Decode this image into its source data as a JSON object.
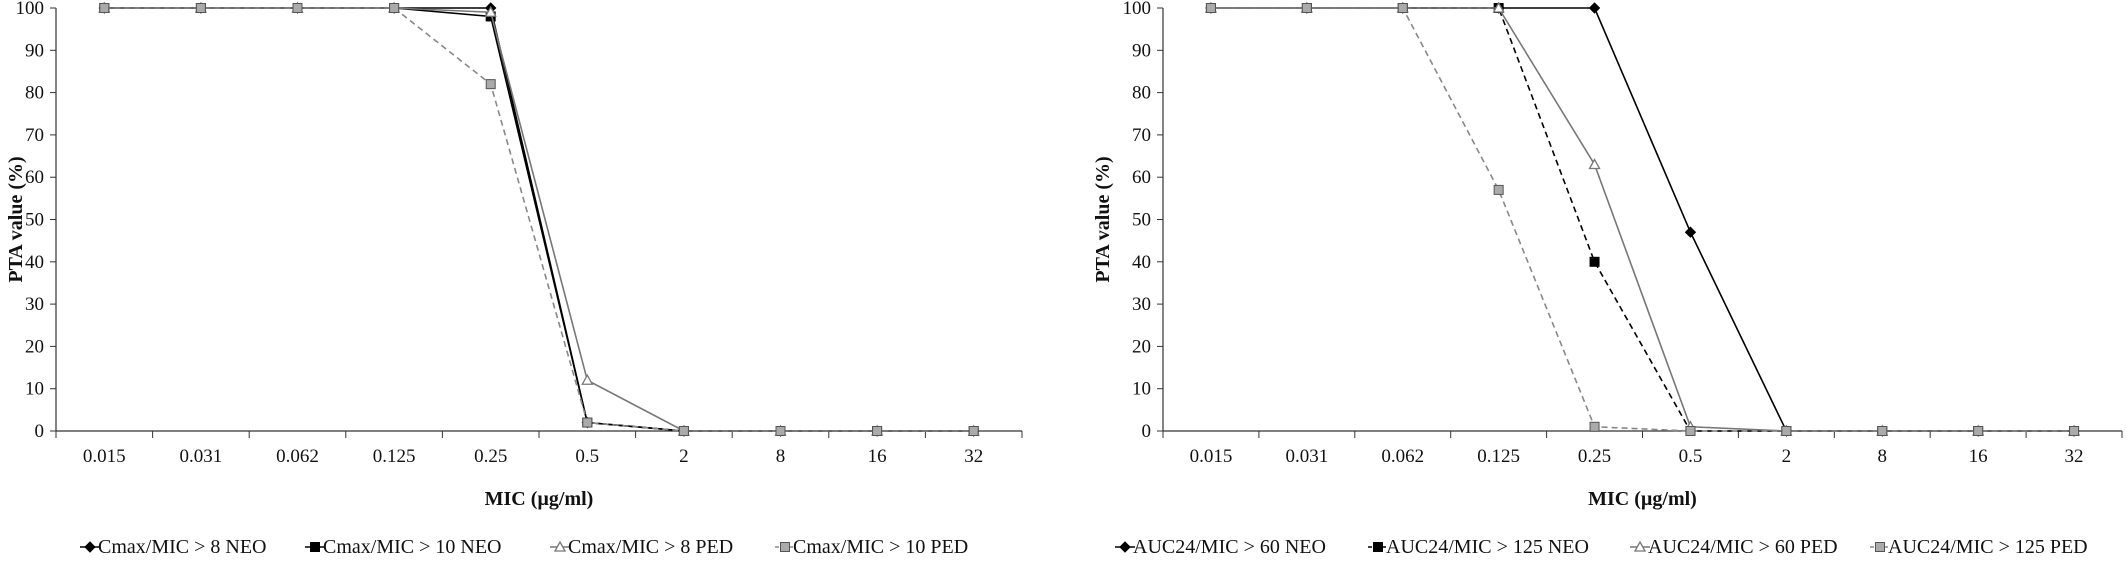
{
  "chart_data": [
    {
      "type": "line",
      "title": "",
      "xlabel": "MIC (µg/ml)",
      "ylabel": "PTA value (%)",
      "categories": [
        "0.015",
        "0.031",
        "0.062",
        "0.125",
        "0.25",
        "0.5",
        "2",
        "8",
        "16",
        "32"
      ],
      "ylim": [
        0,
        100
      ],
      "yticks": [
        "0",
        "10",
        "20",
        "30",
        "40",
        "50",
        "60",
        "70",
        "80",
        "90",
        "100"
      ],
      "grid": false,
      "legend_position": "bottom",
      "series": [
        {
          "name": "Cmax/MIC > 8 NEO",
          "marker": "diamond",
          "dash": "solid",
          "color": "#000000",
          "values": [
            100,
            100,
            100,
            100,
            100,
            2,
            0,
            0,
            0,
            0
          ]
        },
        {
          "name": "Cmax/MIC > 10 NEO",
          "marker": "square",
          "dash": "solid",
          "color": "#000000",
          "values": [
            100,
            100,
            100,
            100,
            98,
            2,
            0,
            0,
            0,
            0
          ]
        },
        {
          "name": "Cmax/MIC > 8 PED",
          "marker": "triangle",
          "dash": "solid",
          "color": "#777777",
          "values": [
            100,
            100,
            100,
            100,
            99,
            12,
            0,
            0,
            0,
            0
          ]
        },
        {
          "name": "Cmax/MIC > 10 PED",
          "marker": "square",
          "dash": "dashed",
          "color": "#888888",
          "values": [
            100,
            100,
            100,
            100,
            82,
            2,
            0,
            0,
            0,
            0
          ]
        }
      ]
    },
    {
      "type": "line",
      "title": "",
      "xlabel": "MIC (µg/ml)",
      "ylabel": "PTA value (%)",
      "categories": [
        "0.015",
        "0.031",
        "0.062",
        "0.125",
        "0.25",
        "0.5",
        "2",
        "8",
        "16",
        "32"
      ],
      "ylim": [
        0,
        100
      ],
      "yticks": [
        "0",
        "10",
        "20",
        "30",
        "40",
        "50",
        "60",
        "70",
        "80",
        "90",
        "100"
      ],
      "grid": false,
      "legend_position": "bottom",
      "series": [
        {
          "name": "AUC24/MIC > 60 NEO",
          "marker": "diamond",
          "dash": "solid",
          "color": "#000000",
          "values": [
            100,
            100,
            100,
            100,
            100,
            47,
            0,
            0,
            0,
            0
          ]
        },
        {
          "name": "AUC24/MIC > 125 NEO",
          "marker": "square",
          "dash": "dashed",
          "color": "#000000",
          "values": [
            100,
            100,
            100,
            100,
            40,
            0,
            0,
            0,
            0,
            0
          ]
        },
        {
          "name": "AUC24/MIC > 60 PED",
          "marker": "triangle",
          "dash": "solid",
          "color": "#777777",
          "values": [
            100,
            100,
            100,
            100,
            63,
            1,
            0,
            0,
            0,
            0
          ]
        },
        {
          "name": "AUC24/MIC > 125 PED",
          "marker": "square",
          "dash": "dashed",
          "color": "#888888",
          "values": [
            100,
            100,
            100,
            57,
            1,
            0,
            0,
            0,
            0,
            0
          ]
        }
      ]
    }
  ]
}
